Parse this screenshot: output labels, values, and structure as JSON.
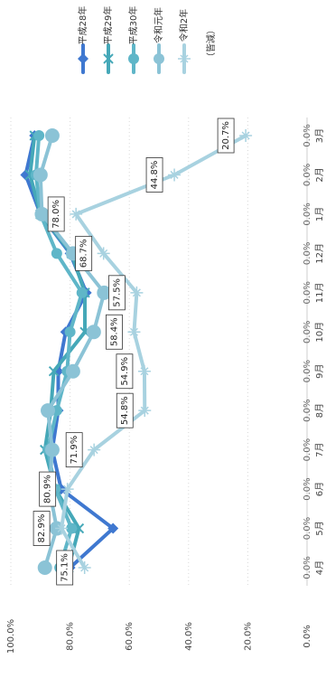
{
  "chart_data": {
    "type": "line",
    "title": "",
    "categories": [
      "4月",
      "5月",
      "6月",
      "7月",
      "8月",
      "9月",
      "10月",
      "11月",
      "12月",
      "1月",
      "2月",
      "3月"
    ],
    "ylim": [
      0,
      100
    ],
    "y_ticks": [
      "0.0%",
      "20.0%",
      "40.0%",
      "60.0%",
      "80.0%",
      "100.0%"
    ],
    "grid": true,
    "legend_position": "top-right",
    "legend_note": "（皆減）",
    "series": [
      {
        "name": "平成28年",
        "color": "#3f78d0",
        "marker": "diamond",
        "values": [
          80,
          65.5,
          83,
          86,
          84,
          84,
          81.5,
          74.5,
          80,
          90,
          95,
          92
        ]
      },
      {
        "name": "平成29年",
        "color": "#45a8b8",
        "marker": "cross",
        "values": [
          80.5,
          77,
          85,
          88.5,
          86.5,
          85.5,
          75,
          75,
          79.5,
          90,
          93.5,
          92
        ]
      },
      {
        "name": "平成30年",
        "color": "#5fb6c8",
        "marker": "circle",
        "values": [
          83.5,
          79.5,
          85,
          87.5,
          84.5,
          81,
          80,
          76,
          84.5,
          90,
          91.5,
          90.5
        ]
      },
      {
        "name": "令和元年",
        "color": "#8bc3d6",
        "marker": "circle-large",
        "values": [
          88.5,
          84.5,
          87,
          86,
          87.5,
          79,
          72,
          68.5,
          79,
          89.5,
          90,
          86
        ]
      },
      {
        "name": "令和2年",
        "color": "#a8d2e0",
        "marker": "star",
        "values": [
          75.1,
          82.9,
          80.9,
          71.9,
          54.8,
          54.9,
          58.4,
          57.5,
          68.7,
          78.0,
          44.8,
          20.7
        ]
      }
    ],
    "data_labels_series": "令和2年",
    "data_labels": [
      "75.1%",
      "82.9%",
      "80.9%",
      "71.9%",
      "54.8%",
      "54.9%",
      "58.4%",
      "57.5%",
      "68.7%",
      "78.0%",
      "44.8%",
      "20.7%"
    ],
    "x_value_labels": [
      "0.0%",
      "0.0%",
      "0.0%",
      "0.0%",
      "0.0%",
      "0.0%",
      "0.0%",
      "0.0%",
      "0.0%",
      "0.0%",
      "0.0%",
      "0.0%"
    ]
  }
}
